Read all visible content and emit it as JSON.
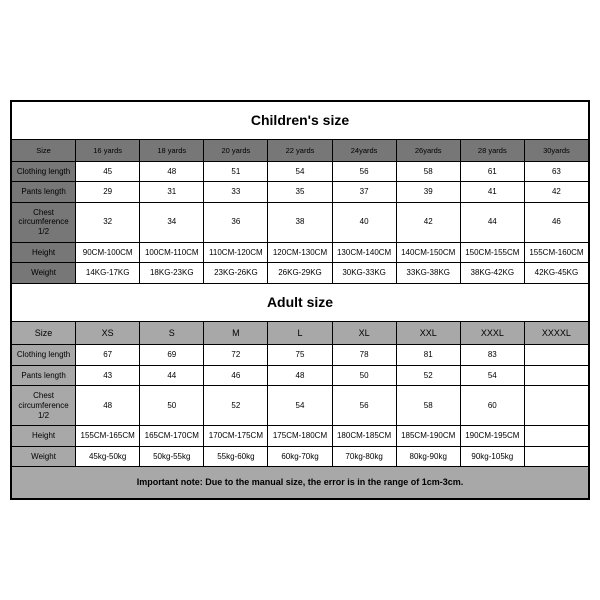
{
  "children": {
    "title": "Children's size",
    "columns": [
      "Size",
      "16 yards",
      "18 yards",
      "20 yards",
      "22 yards",
      "24yards",
      "26yards",
      "28 yards",
      "30yards"
    ],
    "rows": [
      {
        "label": "Clothing length",
        "values": [
          "45",
          "48",
          "51",
          "54",
          "56",
          "58",
          "61",
          "63"
        ]
      },
      {
        "label": "Pants length",
        "values": [
          "29",
          "31",
          "33",
          "35",
          "37",
          "39",
          "41",
          "42"
        ]
      },
      {
        "label": "Chest circumference 1/2",
        "values": [
          "32",
          "34",
          "36",
          "38",
          "40",
          "42",
          "44",
          "46"
        ]
      },
      {
        "label": "Height",
        "values": [
          "90CM-100CM",
          "100CM-110CM",
          "110CM-120CM",
          "120CM-130CM",
          "130CM-140CM",
          "140CM-150CM",
          "150CM-155CM",
          "155CM-160CM"
        ]
      },
      {
        "label": "Weight",
        "values": [
          "14KG-17KG",
          "18KG-23KG",
          "23KG-26KG",
          "26KG-29KG",
          "30KG-33KG",
          "33KG-38KG",
          "38KG-42KG",
          "42KG-45KG"
        ]
      }
    ]
  },
  "adult": {
    "title": "Adult size",
    "columns": [
      "Size",
      "XS",
      "S",
      "M",
      "L",
      "XL",
      "XXL",
      "XXXL",
      "XXXXL"
    ],
    "rows": [
      {
        "label": "Clothing length",
        "values": [
          "67",
          "69",
          "72",
          "75",
          "78",
          "81",
          "83",
          ""
        ]
      },
      {
        "label": "Pants length",
        "values": [
          "43",
          "44",
          "46",
          "48",
          "50",
          "52",
          "54",
          ""
        ]
      },
      {
        "label": "Chest circumference 1/2",
        "values": [
          "48",
          "50",
          "52",
          "54",
          "56",
          "58",
          "60",
          ""
        ]
      },
      {
        "label": "Height",
        "values": [
          "155CM-165CM",
          "165CM-170CM",
          "170CM-175CM",
          "175CM-180CM",
          "180CM-185CM",
          "185CM-190CM",
          "190CM-195CM",
          ""
        ]
      },
      {
        "label": "Weight",
        "values": [
          "45kg-50kg",
          "50kg-55kg",
          "55kg-60kg",
          "60kg-70kg",
          "70kg-80kg",
          "80kg-90kg",
          "90kg-105kg",
          ""
        ]
      }
    ]
  },
  "note": "Important note: Due to the manual size, the error is in the range of 1cm-3cm."
}
